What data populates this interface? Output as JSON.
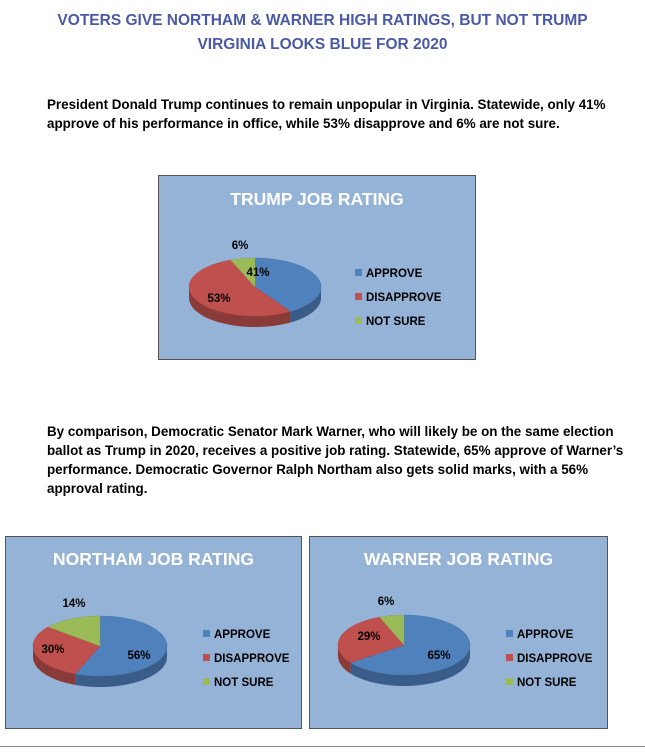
{
  "headline": {
    "line1": "VOTERS GIVE NORTHAM & WARNER HIGH RATINGS, BUT NOT TRUMP",
    "line2": "VIRGINIA LOOKS BLUE FOR 2020"
  },
  "paragraphs": {
    "p1": "President Donald Trump continues to remain unpopular in Virginia.  Statewide, only 41% approve of his performance in office, while 53% disapprove and 6% are not sure.",
    "p2": "By comparison, Democratic Senator Mark Warner, who will likely be on the same election ballot as Trump in 2020, receives a positive job rating.  Statewide, 65% approve of Warner’s performance.  Democratic Governor Ralph Northam also gets solid marks, with a 56% approval rating."
  },
  "colors": {
    "approve": "#4f81bd",
    "disapprove": "#c0504d",
    "not_sure": "#9bbb59",
    "chart_background": "#95b3d7",
    "headline": "#4b5aa6"
  },
  "chart_data": [
    {
      "id": "trump",
      "type": "pie",
      "title": "TRUMP JOB RATING",
      "categories": [
        "APPROVE",
        "DISAPPROVE",
        "NOT SURE"
      ],
      "values": [
        41,
        53,
        6
      ],
      "labels": [
        "41%",
        "53%",
        "6%"
      ],
      "legend_position": "right"
    },
    {
      "id": "northam",
      "type": "pie",
      "title": "NORTHAM JOB RATING",
      "categories": [
        "APPROVE",
        "DISAPPROVE",
        "NOT SURE"
      ],
      "values": [
        56,
        30,
        14
      ],
      "labels": [
        "56%",
        "30%",
        "14%"
      ],
      "legend_position": "right"
    },
    {
      "id": "warner",
      "type": "pie",
      "title": "WARNER JOB RATING",
      "categories": [
        "APPROVE",
        "DISAPPROVE",
        "NOT SURE"
      ],
      "values": [
        65,
        29,
        6
      ],
      "labels": [
        "65%",
        "29%",
        "6%"
      ],
      "legend_position": "right"
    }
  ]
}
